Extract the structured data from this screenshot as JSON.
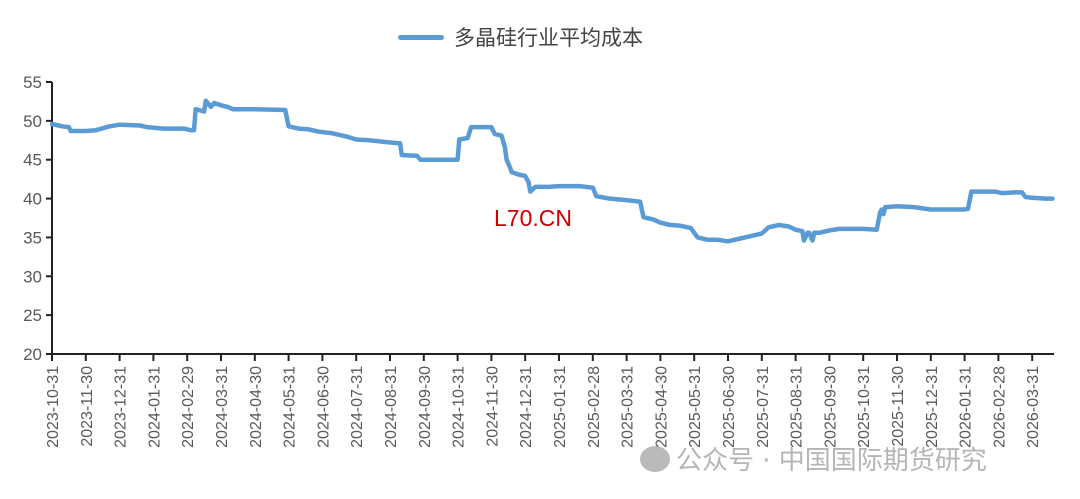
{
  "chart_data": {
    "type": "line",
    "title": "",
    "legend": {
      "position": "top",
      "entries": [
        "多晶硅行业平均成本"
      ]
    },
    "xlabel": "",
    "ylabel": "",
    "ylim": [
      20,
      55
    ],
    "yticks": [
      20,
      25,
      30,
      35,
      40,
      45,
      50,
      55
    ],
    "grid": false,
    "x_tick_labels": [
      "2023-10-31",
      "2023-11-30",
      "2023-12-31",
      "2024-01-31",
      "2024-02-29",
      "2024-03-31",
      "2024-04-30",
      "2024-05-31",
      "2024-06-30",
      "2024-07-31",
      "2024-08-31",
      "2024-09-30",
      "2024-10-31",
      "2024-11-30",
      "2024-12-31",
      "2025-01-31",
      "2025-02-28",
      "2025-03-31",
      "2025-04-30",
      "2025-05-31",
      "2025-06-30",
      "2025-07-31",
      "2025-08-31",
      "2025-09-30",
      "2025-10-31",
      "2025-11-30",
      "2025-12-31",
      "2026-01-31",
      "2026-02-28",
      "2026-03-31"
    ],
    "series": [
      {
        "name": "多晶硅行业平均成本",
        "color": "#5b9bd5",
        "points_month_index_value": [
          [
            0,
            49.6
          ],
          [
            0.3,
            49.3
          ],
          [
            0.5,
            49.2
          ],
          [
            0.55,
            48.7
          ],
          [
            1.0,
            48.7
          ],
          [
            1.3,
            48.8
          ],
          [
            1.7,
            49.3
          ],
          [
            2.0,
            49.5
          ],
          [
            2.6,
            49.4
          ],
          [
            2.8,
            49.2
          ],
          [
            3.3,
            49.0
          ],
          [
            3.8,
            49.0
          ],
          [
            3.9,
            49.0
          ],
          [
            4.1,
            48.8
          ],
          [
            4.2,
            48.8
          ],
          [
            4.25,
            51.5
          ],
          [
            4.5,
            51.2
          ],
          [
            4.55,
            52.6
          ],
          [
            4.7,
            51.8
          ],
          [
            4.8,
            52.3
          ],
          [
            5.0,
            52.0
          ],
          [
            5.2,
            51.8
          ],
          [
            5.35,
            51.5
          ],
          [
            6.0,
            51.5
          ],
          [
            6.9,
            51.4
          ],
          [
            7.0,
            49.3
          ],
          [
            7.3,
            49.0
          ],
          [
            7.6,
            48.9
          ],
          [
            7.9,
            48.6
          ],
          [
            8.3,
            48.4
          ],
          [
            8.7,
            48.0
          ],
          [
            9.0,
            47.6
          ],
          [
            9.4,
            47.5
          ],
          [
            9.8,
            47.3
          ],
          [
            10.3,
            47.1
          ],
          [
            10.35,
            45.6
          ],
          [
            10.8,
            45.5
          ],
          [
            10.9,
            45.0
          ],
          [
            11.5,
            45.0
          ],
          [
            12.0,
            45.0
          ],
          [
            12.05,
            47.6
          ],
          [
            12.3,
            47.8
          ],
          [
            12.4,
            49.2
          ],
          [
            12.6,
            49.2
          ],
          [
            13.0,
            49.2
          ],
          [
            13.1,
            48.3
          ],
          [
            13.3,
            48.1
          ],
          [
            13.4,
            46.6
          ],
          [
            13.45,
            45.0
          ],
          [
            13.55,
            44.0
          ],
          [
            13.6,
            43.4
          ],
          [
            13.8,
            43.1
          ],
          [
            14.0,
            42.9
          ],
          [
            14.1,
            42.1
          ],
          [
            14.15,
            40.9
          ],
          [
            14.3,
            41.5
          ],
          [
            14.7,
            41.5
          ],
          [
            15.0,
            41.6
          ],
          [
            15.6,
            41.6
          ],
          [
            16.0,
            41.4
          ],
          [
            16.1,
            40.3
          ],
          [
            16.5,
            40.0
          ],
          [
            17.0,
            39.8
          ],
          [
            17.4,
            39.6
          ],
          [
            17.5,
            37.6
          ],
          [
            17.8,
            37.3
          ],
          [
            18.0,
            36.9
          ],
          [
            18.3,
            36.6
          ],
          [
            18.6,
            36.5
          ],
          [
            18.9,
            36.2
          ],
          [
            19.1,
            35.0
          ],
          [
            19.4,
            34.7
          ],
          [
            19.7,
            34.7
          ],
          [
            20.0,
            34.5
          ],
          [
            20.3,
            34.8
          ],
          [
            20.6,
            35.1
          ],
          [
            20.9,
            35.4
          ],
          [
            21.0,
            35.5
          ],
          [
            21.2,
            36.3
          ],
          [
            21.5,
            36.6
          ],
          [
            21.8,
            36.4
          ],
          [
            22.0,
            36.0
          ],
          [
            22.2,
            35.8
          ],
          [
            22.25,
            34.6
          ],
          [
            22.35,
            35.6
          ],
          [
            22.4,
            35.6
          ],
          [
            22.5,
            34.6
          ],
          [
            22.55,
            35.6
          ],
          [
            22.7,
            35.6
          ],
          [
            23.0,
            35.9
          ],
          [
            23.3,
            36.1
          ],
          [
            24.0,
            36.1
          ],
          [
            24.4,
            36.0
          ],
          [
            24.5,
            38.2
          ],
          [
            24.55,
            38.6
          ],
          [
            24.6,
            38.0
          ],
          [
            24.65,
            38.9
          ],
          [
            25.0,
            39.0
          ],
          [
            25.5,
            38.9
          ],
          [
            26.0,
            38.6
          ],
          [
            26.5,
            38.6
          ],
          [
            27.0,
            38.6
          ],
          [
            27.1,
            38.7
          ],
          [
            27.2,
            40.9
          ],
          [
            27.6,
            40.9
          ],
          [
            27.9,
            40.9
          ],
          [
            28.1,
            40.7
          ],
          [
            28.5,
            40.8
          ],
          [
            28.7,
            40.8
          ],
          [
            28.8,
            40.2
          ],
          [
            29.0,
            40.1
          ],
          [
            29.4,
            40.0
          ],
          [
            29.6,
            40.0
          ]
        ]
      }
    ],
    "annotations": [
      "L70.CN"
    ]
  },
  "legend": {
    "label": "多晶硅行业平均成本"
  },
  "annotation": {
    "text": "L70.CN"
  },
  "watermark": {
    "text": "公众号 · 中国国际期货研究"
  }
}
